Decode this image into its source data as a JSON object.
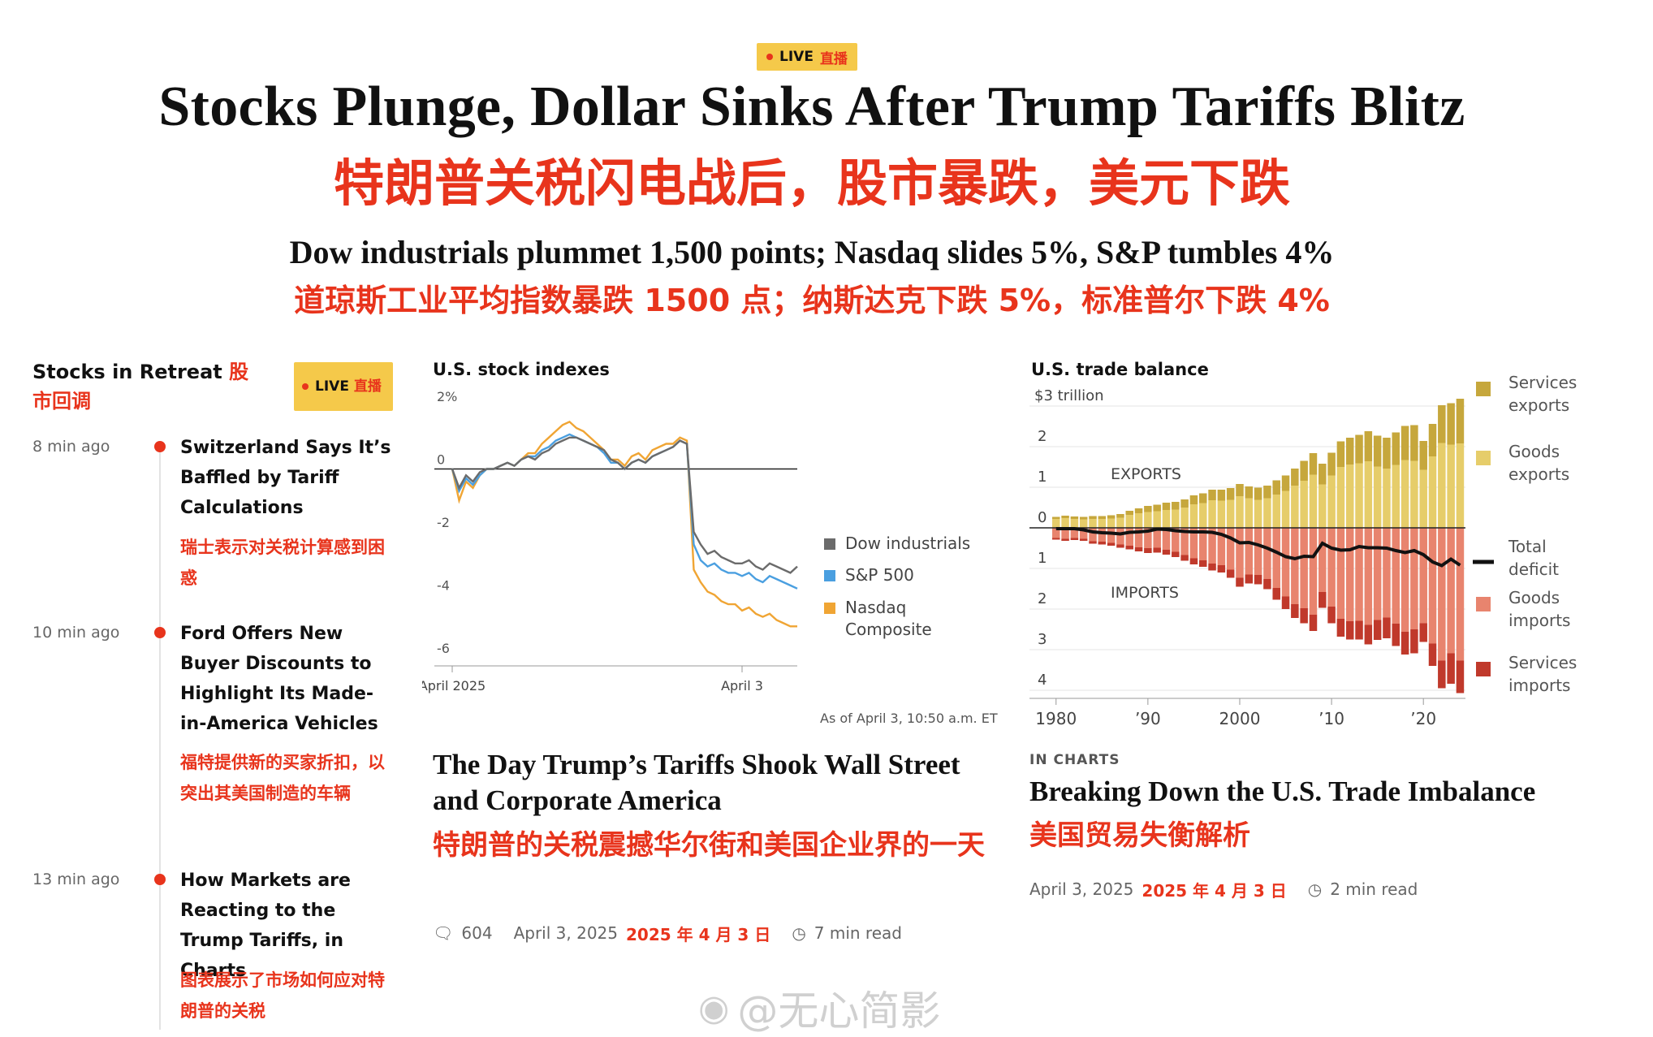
{
  "header": {
    "live_label": "LIVE",
    "live_zh": "直播",
    "headline": "Stocks Plunge, Dollar Sinks After Trump Tariffs Blitz",
    "headline_zh": "特朗普关税闪电战后，股市暴跌，美元下跌",
    "subhead": "Dow industrials plummet 1,500 points; Nasdaq slides 5%, S&P tumbles 4%",
    "subhead_zh": "道琼斯工业平均指数暴跌 1500 点；纳斯达克下跌 5%，标准普尔下跌 4%"
  },
  "sidebar": {
    "title": "Stocks in Retreat",
    "title_zh": "股市回调",
    "live_label": "LIVE",
    "live_zh": "直播",
    "items": [
      {
        "time": "8 min ago",
        "title": "Switzerland Says It’s Baffled by Tariff Calculations",
        "title_zh": "瑞士表示对关税计算感到困惑"
      },
      {
        "time": "10 min ago",
        "title": "Ford Offers New Buyer Discounts to Highlight Its Made-in-America Vehicles",
        "title_zh": "福特提供新的买家折扣，以突出其美国制造的车辆"
      },
      {
        "time": "13 min ago",
        "title": "How Markets are Reacting to the Trump Tariffs, in Charts",
        "title_zh": "图表展示了市场如何应对特朗普的关税"
      }
    ]
  },
  "story1": {
    "chart_title": "U.S. stock indexes",
    "as_of": "As of April 3, 10:50 a.m. ET",
    "headline": "The Day Trump’s Tariffs Shook Wall Street and Corporate America",
    "headline_zh": "特朗普的关税震撼华尔街和美国企业界的一天",
    "comments": "604",
    "date": "April 3, 2025",
    "date_zh": "2025 年 4 月 3 日",
    "read_time": "7 min read"
  },
  "story2": {
    "chart_title": "U.S. trade balance",
    "kicker": "IN CHARTS",
    "headline": "Breaking Down the U.S. Trade Imbalance",
    "headline_zh": "美国贸易失衡解析",
    "date": "April 3, 2025",
    "date_zh": "2025 年 4 月 3 日",
    "read_time": "2 min read"
  },
  "watermark": "@无心简影",
  "colors": {
    "accent_red": "#e8341c",
    "live_yellow": "#f5c94a",
    "dow": "#6b6b6b",
    "sp500": "#4a9fe0",
    "nasdaq": "#f0a534",
    "services_exports": "#c6a73c",
    "goods_exports": "#e6cd6a",
    "goods_imports": "#e8846e",
    "services_imports": "#c0392b"
  },
  "chart_data": [
    {
      "type": "line",
      "title": "U.S. stock indexes",
      "x_tick_labels": [
        "April 2025",
        "April 3"
      ],
      "y_tick_labels": [
        "2%",
        "0",
        "-2",
        "-4",
        "-6"
      ],
      "ylim": [
        -6,
        2
      ],
      "annotation": "As of April 3, 10:50 a.m. ET",
      "x": [
        0,
        2,
        4,
        6,
        8,
        10,
        12,
        14,
        16,
        18,
        20,
        22,
        24,
        26,
        28,
        30,
        32,
        34,
        36,
        38,
        40,
        42,
        44,
        46,
        48,
        50,
        52,
        54,
        56,
        58,
        60,
        62,
        64,
        66,
        68,
        70,
        72,
        74,
        76,
        78,
        80,
        82,
        84,
        86,
        88,
        90,
        92,
        94,
        96,
        98,
        100
      ],
      "series": [
        {
          "name": "Dow industrials",
          "color": "#6b6b6b",
          "values": [
            0.0,
            -0.6,
            -0.2,
            -0.4,
            -0.1,
            0.0,
            0.0,
            0.1,
            0.2,
            0.1,
            0.3,
            0.4,
            0.3,
            0.5,
            0.6,
            0.8,
            0.9,
            1.0,
            1.0,
            0.9,
            0.8,
            0.7,
            0.6,
            0.3,
            0.2,
            0.0,
            0.2,
            0.3,
            0.2,
            0.4,
            0.5,
            0.6,
            0.7,
            0.9,
            0.8,
            -2.0,
            -2.4,
            -2.7,
            -2.6,
            -2.8,
            -2.9,
            -3.0,
            -3.0,
            -2.9,
            -3.1,
            -3.2,
            -3.0,
            -3.1,
            -3.2,
            -3.3,
            -3.1
          ]
        },
        {
          "name": "S&P 500",
          "color": "#4a9fe0",
          "values": [
            0.0,
            -0.7,
            -0.3,
            -0.5,
            -0.2,
            0.0,
            0.0,
            0.1,
            0.2,
            0.1,
            0.3,
            0.4,
            0.4,
            0.6,
            0.7,
            0.9,
            1.0,
            1.1,
            1.0,
            0.9,
            0.8,
            0.7,
            0.5,
            0.2,
            0.2,
            0.0,
            0.2,
            0.3,
            0.2,
            0.4,
            0.5,
            0.6,
            0.7,
            0.9,
            0.8,
            -2.4,
            -2.9,
            -3.1,
            -3.0,
            -3.2,
            -3.3,
            -3.3,
            -3.4,
            -3.3,
            -3.5,
            -3.6,
            -3.4,
            -3.5,
            -3.6,
            -3.7,
            -3.8
          ]
        },
        {
          "name": "Nasdaq Composite",
          "color": "#f0a534",
          "values": [
            0.0,
            -1.0,
            -0.4,
            -0.6,
            -0.2,
            0.0,
            0.0,
            0.1,
            0.2,
            0.1,
            0.3,
            0.5,
            0.5,
            0.8,
            1.0,
            1.2,
            1.4,
            1.5,
            1.3,
            1.2,
            1.0,
            0.8,
            0.6,
            0.3,
            0.3,
            0.1,
            0.4,
            0.5,
            0.3,
            0.6,
            0.7,
            0.8,
            0.8,
            1.0,
            0.9,
            -3.2,
            -3.6,
            -3.9,
            -4.0,
            -4.2,
            -4.3,
            -4.3,
            -4.5,
            -4.4,
            -4.6,
            -4.7,
            -4.6,
            -4.8,
            -4.9,
            -5.0,
            -5.0
          ]
        }
      ]
    },
    {
      "type": "bar",
      "title": "U.S. trade balance",
      "ylabel": "$3 trillion",
      "y_tick_labels": [
        "$3 trillion",
        "2",
        "1",
        "0",
        "1",
        "2",
        "3",
        "4"
      ],
      "ylim": [
        -4,
        3
      ],
      "x_tick_labels": [
        "1980",
        "’90",
        "2000",
        "’10",
        "’20"
      ],
      "section_labels": [
        "EXPORTS",
        "IMPORTS"
      ],
      "years": [
        1980,
        1981,
        1982,
        1983,
        1984,
        1985,
        1986,
        1987,
        1988,
        1989,
        1990,
        1991,
        1992,
        1993,
        1994,
        1995,
        1996,
        1997,
        1998,
        1999,
        2000,
        2001,
        2002,
        2003,
        2004,
        2005,
        2006,
        2007,
        2008,
        2009,
        2010,
        2011,
        2012,
        2013,
        2014,
        2015,
        2016,
        2017,
        2018,
        2019,
        2020,
        2021,
        2022,
        2023,
        2024
      ],
      "series": [
        {
          "name": "Goods exports",
          "color": "#e6cd6a",
          "values": [
            0.22,
            0.24,
            0.22,
            0.21,
            0.22,
            0.22,
            0.23,
            0.25,
            0.32,
            0.36,
            0.39,
            0.41,
            0.44,
            0.45,
            0.5,
            0.58,
            0.61,
            0.68,
            0.67,
            0.69,
            0.78,
            0.73,
            0.69,
            0.73,
            0.82,
            0.91,
            1.04,
            1.16,
            1.31,
            1.07,
            1.29,
            1.5,
            1.56,
            1.59,
            1.64,
            1.51,
            1.46,
            1.55,
            1.67,
            1.65,
            1.43,
            1.76,
            2.09,
            2.05,
            2.08
          ]
        },
        {
          "name": "Services exports",
          "color": "#c6a73c",
          "values": [
            0.05,
            0.06,
            0.06,
            0.06,
            0.07,
            0.07,
            0.08,
            0.09,
            0.1,
            0.12,
            0.15,
            0.16,
            0.18,
            0.19,
            0.2,
            0.22,
            0.24,
            0.26,
            0.27,
            0.29,
            0.3,
            0.29,
            0.3,
            0.31,
            0.35,
            0.38,
            0.42,
            0.49,
            0.53,
            0.51,
            0.56,
            0.63,
            0.66,
            0.7,
            0.74,
            0.76,
            0.76,
            0.8,
            0.84,
            0.88,
            0.71,
            0.8,
            0.93,
            1.02,
            1.1
          ]
        },
        {
          "name": "Goods imports",
          "color": "#e8846e",
          "values": [
            -0.25,
            -0.27,
            -0.25,
            -0.27,
            -0.33,
            -0.34,
            -0.37,
            -0.41,
            -0.44,
            -0.48,
            -0.5,
            -0.49,
            -0.54,
            -0.59,
            -0.67,
            -0.75,
            -0.8,
            -0.88,
            -0.92,
            -1.03,
            -1.23,
            -1.15,
            -1.16,
            -1.26,
            -1.48,
            -1.69,
            -1.88,
            -1.98,
            -2.14,
            -1.58,
            -1.94,
            -2.24,
            -2.3,
            -2.29,
            -2.39,
            -2.27,
            -2.21,
            -2.36,
            -2.56,
            -2.5,
            -2.35,
            -2.85,
            -3.27,
            -3.09,
            -3.27
          ]
        },
        {
          "name": "Services imports",
          "color": "#c0392b",
          "values": [
            -0.04,
            -0.05,
            -0.05,
            -0.05,
            -0.06,
            -0.07,
            -0.07,
            -0.08,
            -0.09,
            -0.1,
            -0.12,
            -0.12,
            -0.12,
            -0.13,
            -0.14,
            -0.15,
            -0.16,
            -0.17,
            -0.18,
            -0.2,
            -0.22,
            -0.22,
            -0.23,
            -0.25,
            -0.29,
            -0.31,
            -0.34,
            -0.37,
            -0.4,
            -0.39,
            -0.41,
            -0.44,
            -0.45,
            -0.46,
            -0.48,
            -0.49,
            -0.51,
            -0.55,
            -0.56,
            -0.59,
            -0.46,
            -0.55,
            -0.68,
            -0.75,
            -0.8
          ]
        },
        {
          "name": "Total deficit",
          "color": "#111111",
          "values": [
            -0.02,
            -0.02,
            -0.02,
            -0.05,
            -0.1,
            -0.12,
            -0.13,
            -0.15,
            -0.11,
            -0.1,
            -0.08,
            -0.03,
            -0.04,
            -0.07,
            -0.09,
            -0.1,
            -0.1,
            -0.11,
            -0.16,
            -0.25,
            -0.37,
            -0.36,
            -0.42,
            -0.5,
            -0.6,
            -0.71,
            -0.76,
            -0.7,
            -0.71,
            -0.38,
            -0.5,
            -0.55,
            -0.54,
            -0.46,
            -0.49,
            -0.49,
            -0.5,
            -0.56,
            -0.61,
            -0.56,
            -0.66,
            -0.84,
            -0.93,
            -0.77,
            -0.92
          ]
        }
      ]
    }
  ]
}
